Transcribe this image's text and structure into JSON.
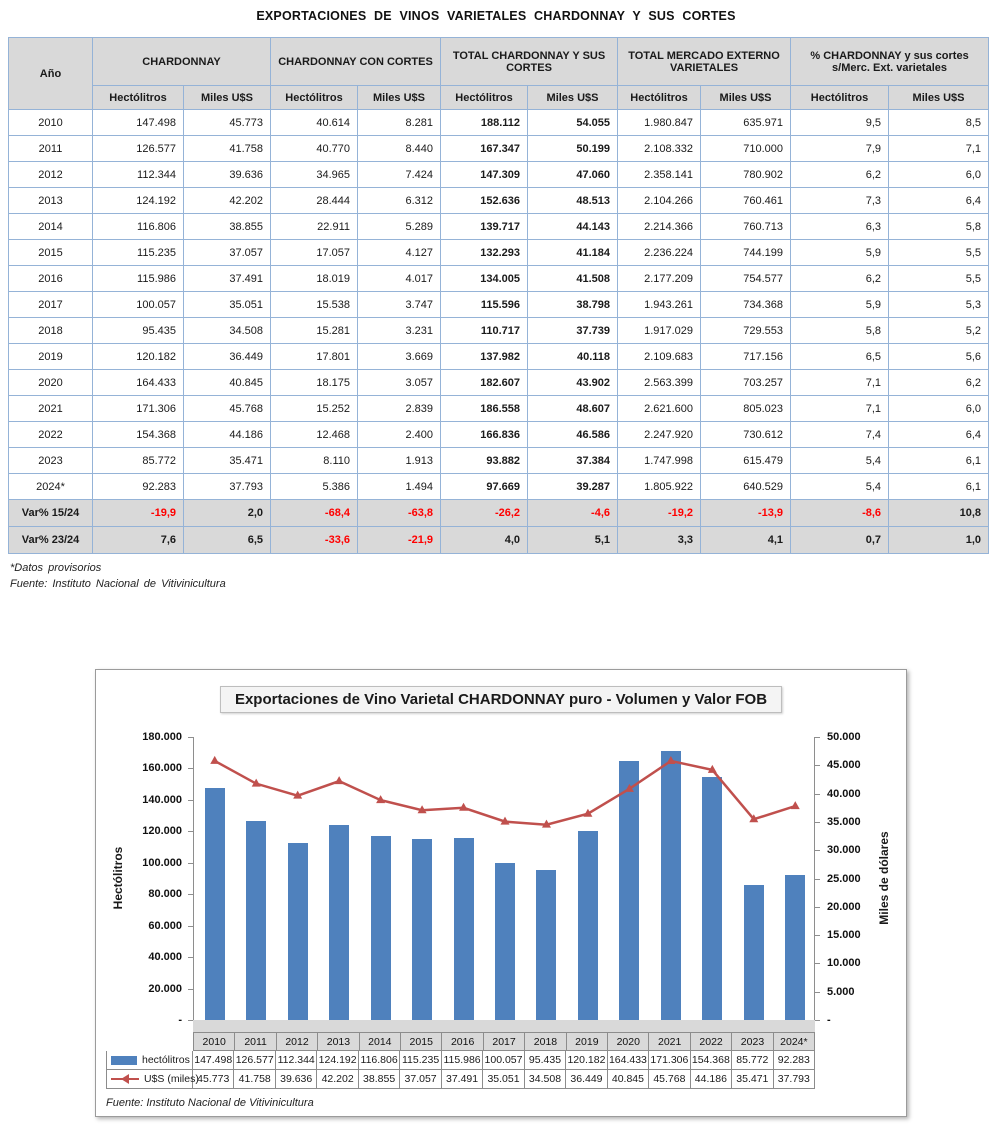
{
  "document": {
    "title": "EXPORTACIONES DE VINOS VARIETALES CHARDONNAY Y SUS CORTES",
    "footnote_asterisk": "*Datos provisorios",
    "footnote_source": "Fuente: Instituto Nacional de Vitivinicultura"
  },
  "table": {
    "year_header": "Año",
    "groups": [
      "CHARDONNAY",
      "CHARDONNAY CON CORTES",
      "TOTAL CHARDONNAY Y SUS CORTES",
      "TOTAL MERCADO EXTERNO VARIETALES",
      "% CHARDONNAY y sus cortes s/Merc. Ext. varietales"
    ],
    "sub_headers": [
      "Hectólitros",
      "Miles U$S",
      "Hectólitros",
      "Miles U$S",
      "Hectólitros",
      "Miles U$S",
      "Hectólitros",
      "Miles U$S",
      "Hectólitros",
      "Miles U$S"
    ],
    "bold_columns": [
      4,
      5
    ],
    "rows": [
      {
        "year": "2010",
        "values": [
          "147.498",
          "45.773",
          "40.614",
          "8.281",
          "188.112",
          "54.055",
          "1.980.847",
          "635.971",
          "9,5",
          "8,5"
        ]
      },
      {
        "year": "2011",
        "values": [
          "126.577",
          "41.758",
          "40.770",
          "8.440",
          "167.347",
          "50.199",
          "2.108.332",
          "710.000",
          "7,9",
          "7,1"
        ]
      },
      {
        "year": "2012",
        "values": [
          "112.344",
          "39.636",
          "34.965",
          "7.424",
          "147.309",
          "47.060",
          "2.358.141",
          "780.902",
          "6,2",
          "6,0"
        ]
      },
      {
        "year": "2013",
        "values": [
          "124.192",
          "42.202",
          "28.444",
          "6.312",
          "152.636",
          "48.513",
          "2.104.266",
          "760.461",
          "7,3",
          "6,4"
        ]
      },
      {
        "year": "2014",
        "values": [
          "116.806",
          "38.855",
          "22.911",
          "5.289",
          "139.717",
          "44.143",
          "2.214.366",
          "760.713",
          "6,3",
          "5,8"
        ]
      },
      {
        "year": "2015",
        "values": [
          "115.235",
          "37.057",
          "17.057",
          "4.127",
          "132.293",
          "41.184",
          "2.236.224",
          "744.199",
          "5,9",
          "5,5"
        ]
      },
      {
        "year": "2016",
        "values": [
          "115.986",
          "37.491",
          "18.019",
          "4.017",
          "134.005",
          "41.508",
          "2.177.209",
          "754.577",
          "6,2",
          "5,5"
        ]
      },
      {
        "year": "2017",
        "values": [
          "100.057",
          "35.051",
          "15.538",
          "3.747",
          "115.596",
          "38.798",
          "1.943.261",
          "734.368",
          "5,9",
          "5,3"
        ]
      },
      {
        "year": "2018",
        "values": [
          "95.435",
          "34.508",
          "15.281",
          "3.231",
          "110.717",
          "37.739",
          "1.917.029",
          "729.553",
          "5,8",
          "5,2"
        ]
      },
      {
        "year": "2019",
        "values": [
          "120.182",
          "36.449",
          "17.801",
          "3.669",
          "137.982",
          "40.118",
          "2.109.683",
          "717.156",
          "6,5",
          "5,6"
        ]
      },
      {
        "year": "2020",
        "values": [
          "164.433",
          "40.845",
          "18.175",
          "3.057",
          "182.607",
          "43.902",
          "2.563.399",
          "703.257",
          "7,1",
          "6,2"
        ]
      },
      {
        "year": "2021",
        "values": [
          "171.306",
          "45.768",
          "15.252",
          "2.839",
          "186.558",
          "48.607",
          "2.621.600",
          "805.023",
          "7,1",
          "6,0"
        ]
      },
      {
        "year": "2022",
        "values": [
          "154.368",
          "44.186",
          "12.468",
          "2.400",
          "166.836",
          "46.586",
          "2.247.920",
          "730.612",
          "7,4",
          "6,4"
        ]
      },
      {
        "year": "2023",
        "values": [
          "85.772",
          "35.471",
          "8.110",
          "1.913",
          "93.882",
          "37.384",
          "1.747.998",
          "615.479",
          "5,4",
          "6,1"
        ]
      },
      {
        "year": "2024*",
        "values": [
          "92.283",
          "37.793",
          "5.386",
          "1.494",
          "97.669",
          "39.287",
          "1.805.922",
          "640.529",
          "5,4",
          "6,1"
        ]
      }
    ],
    "var_rows": [
      {
        "label": "Var% 15/24",
        "values": [
          "-19,9",
          "2,0",
          "-68,4",
          "-63,8",
          "-26,2",
          "-4,6",
          "-19,2",
          "-13,9",
          "-8,6",
          "10,8"
        ]
      },
      {
        "label": "Var% 23/24",
        "values": [
          "7,6",
          "6,5",
          "-33,6",
          "-21,9",
          "4,0",
          "5,1",
          "3,3",
          "4,1",
          "0,7",
          "1,0"
        ]
      }
    ],
    "colors": {
      "border": "#95B3D7",
      "header_bg": "#D9D9D9",
      "negative": "#FF0000"
    }
  },
  "chart_data": {
    "type": "bar",
    "title": "Exportaciones de Vino Varietal CHARDONNAY puro - Volumen y Valor FOB",
    "categories": [
      "2010",
      "2011",
      "2012",
      "2013",
      "2014",
      "2015",
      "2016",
      "2017",
      "2018",
      "2019",
      "2020",
      "2021",
      "2022",
      "2023",
      "2024*"
    ],
    "series": [
      {
        "name": "hectólitros",
        "type": "bar",
        "axis": "left",
        "color": "#4F81BD",
        "values": [
          147498,
          126577,
          112344,
          124192,
          116806,
          115235,
          115986,
          100057,
          95435,
          120182,
          164433,
          171306,
          154368,
          85772,
          92283
        ],
        "labels": [
          "147.498",
          "126.577",
          "112.344",
          "124.192",
          "116.806",
          "115.235",
          "115.986",
          "100.057",
          "95.435",
          "120.182",
          "164.433",
          "171.306",
          "154.368",
          "85.772",
          "92.283"
        ]
      },
      {
        "name": "U$S (miles)",
        "type": "line",
        "axis": "right",
        "color": "#C0504D",
        "values": [
          45773,
          41758,
          39636,
          42202,
          38855,
          37057,
          37491,
          35051,
          34508,
          36449,
          40845,
          45768,
          44186,
          35471,
          37793
        ],
        "labels": [
          "45.773",
          "41.758",
          "39.636",
          "42.202",
          "38.855",
          "37.057",
          "37.491",
          "35.051",
          "34.508",
          "36.449",
          "40.845",
          "45.768",
          "44.186",
          "35.471",
          "37.793"
        ]
      }
    ],
    "left_axis": {
      "label": "Hectólitros",
      "min": 0,
      "max": 180000,
      "step": 20000,
      "tick_labels": [
        "180.000",
        "160.000",
        "140.000",
        "120.000",
        "100.000",
        "80.000",
        "60.000",
        "40.000",
        "20.000",
        "-"
      ]
    },
    "right_axis": {
      "label": "Miles de dólares",
      "min": 0,
      "max": 50000,
      "step": 5000,
      "tick_labels": [
        "50.000",
        "45.000",
        "40.000",
        "35.000",
        "30.000",
        "25.000",
        "20.000",
        "15.000",
        "10.000",
        "5.000",
        "-"
      ]
    },
    "grid": false,
    "legend_position": "data-table-left",
    "source_note": "Fuente: Instituto Nacional de Vitivinicultura"
  }
}
